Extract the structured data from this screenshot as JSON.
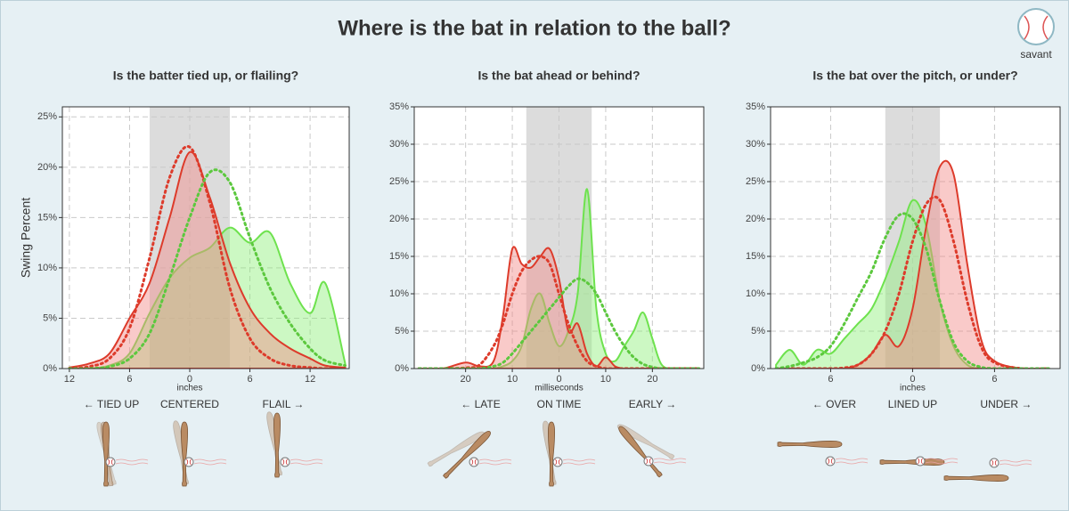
{
  "title": "Where is the bat in relation to the ball?",
  "logo": "savant",
  "chart_data": [
    {
      "type": "density",
      "subtitle": "Is the batter tied up, or flailing?",
      "ylabel": "Swing Percent",
      "xlabel": "inches",
      "zones": [
        "← TIED UP",
        "CENTERED",
        "FLAIL →"
      ],
      "xlim": [
        -12.7,
        15.9
      ],
      "ylim": [
        0,
        26
      ],
      "grid": true,
      "xticks": [
        {
          "value": -12,
          "label": "12"
        },
        {
          "value": -6,
          "label": "6"
        },
        0,
        6,
        12
      ],
      "yticks": [
        {
          "value": 0,
          "label": "0%"
        },
        {
          "value": 5,
          "label": "5%"
        },
        {
          "value": 10,
          "label": "10%"
        },
        {
          "value": 15,
          "label": "15%"
        },
        {
          "value": 20,
          "label": "20%"
        },
        {
          "value": 25,
          "label": "25%"
        }
      ],
      "shade": [
        -4,
        4
      ],
      "x": [
        -12,
        -10,
        -8,
        -6,
        -4,
        -2,
        0,
        2,
        4,
        6,
        8,
        10,
        12,
        13.5,
        15.5
      ],
      "series": [
        {
          "color": "#6ee24e",
          "style": "solid",
          "fill": "#8ff07a",
          "values": [
            0,
            0,
            0.3,
            1.5,
            5.5,
            9,
            11,
            12,
            14,
            12.5,
            13.5,
            8.5,
            5.5,
            8.5,
            0.5
          ]
        },
        {
          "color": "#dd3b2b",
          "style": "solid",
          "fill": "#f28a88",
          "values": [
            0.1,
            0.5,
            1.5,
            5,
            8.5,
            15,
            21.5,
            17,
            10.5,
            6,
            3.5,
            2,
            1,
            0.3,
            0.1
          ]
        },
        {
          "color": "#dd3b2b",
          "style": "dotted",
          "values": [
            0,
            0.2,
            1,
            4,
            11,
            19,
            22,
            16.5,
            8,
            3,
            1,
            0.3,
            0.1,
            0,
            0
          ]
        },
        {
          "color": "#5cc83e",
          "style": "dotted",
          "values": [
            0,
            0,
            0.2,
            1,
            3.5,
            9,
            15,
            19.5,
            18.5,
            13,
            8,
            4.5,
            2,
            0.8,
            0.3
          ]
        }
      ]
    },
    {
      "type": "density",
      "subtitle": "Is the bat ahead or behind?",
      "xlabel": "milliseconds",
      "zones": [
        "← LATE",
        "ON TIME",
        "EARLY →"
      ],
      "xlim": [
        -31,
        31
      ],
      "ylim": [
        0,
        35
      ],
      "grid": true,
      "xticks": [
        {
          "value": -20,
          "label": "20"
        },
        {
          "value": -10,
          "label": "10"
        },
        0,
        10,
        20
      ],
      "yticks": [
        {
          "value": 0,
          "label": "0%"
        },
        {
          "value": 5,
          "label": "5%"
        },
        {
          "value": 10,
          "label": "10%"
        },
        {
          "value": 15,
          "label": "15%"
        },
        {
          "value": 20,
          "label": "20%"
        },
        {
          "value": 25,
          "label": "25%"
        },
        {
          "value": 30,
          "label": "30%"
        },
        {
          "value": 35,
          "label": "35%"
        }
      ],
      "shade": [
        -7,
        7
      ],
      "x": [
        -30,
        -25,
        -20,
        -17,
        -14,
        -12,
        -10,
        -8,
        -6,
        -4,
        -2,
        0,
        2,
        4,
        6,
        8,
        10,
        12,
        14,
        16,
        18,
        20,
        22,
        25,
        30
      ],
      "series": [
        {
          "color": "#6ee24e",
          "style": "solid",
          "fill": "#8ff07a",
          "values": [
            0,
            0,
            0,
            0,
            0,
            0.3,
            1,
            3,
            8,
            10,
            6,
            3,
            5,
            10,
            24,
            8,
            2,
            1,
            3,
            5,
            7.5,
            4,
            0.5,
            0,
            0
          ]
        },
        {
          "color": "#dd3b2b",
          "style": "solid",
          "fill": "#f28a88",
          "values": [
            0,
            0,
            0.8,
            0.3,
            1,
            7,
            16,
            14,
            13.5,
            15,
            16,
            12,
            5,
            6,
            2,
            0.3,
            1.5,
            0.3,
            0,
            0,
            0,
            0,
            0,
            0,
            0
          ]
        },
        {
          "color": "#dd3b2b",
          "style": "dotted",
          "values": [
            0,
            0,
            0.1,
            0.5,
            3,
            6,
            10,
            13,
            14.5,
            15,
            14,
            10,
            6,
            3,
            1,
            0.3,
            0,
            0,
            0,
            0,
            0,
            0,
            0,
            0,
            0
          ]
        },
        {
          "color": "#5cc83e",
          "style": "dotted",
          "values": [
            0,
            0,
            0,
            0,
            0.3,
            0.8,
            2,
            3.5,
            5,
            6.5,
            8,
            9.5,
            11,
            12,
            11.5,
            10,
            7.5,
            5,
            3,
            1.5,
            0.6,
            0.2,
            0,
            0,
            0
          ]
        }
      ]
    },
    {
      "type": "density",
      "subtitle": "Is the bat over the pitch, or under?",
      "xlabel": "inches",
      "zones": [
        "← OVER",
        "LINED UP",
        "UNDER →"
      ],
      "xlim": [
        -10.4,
        10.8
      ],
      "ylim": [
        0,
        35
      ],
      "grid": true,
      "xticks": [
        {
          "value": -6,
          "label": "6"
        },
        0,
        6
      ],
      "yticks": [
        {
          "value": 0,
          "label": "0%"
        },
        {
          "value": 5,
          "label": "5%"
        },
        {
          "value": 10,
          "label": "10%"
        },
        {
          "value": 15,
          "label": "15%"
        },
        {
          "value": 20,
          "label": "20%"
        },
        {
          "value": 25,
          "label": "25%"
        },
        {
          "value": 30,
          "label": "30%"
        },
        {
          "value": 35,
          "label": "35%"
        }
      ],
      "shade": [
        -2,
        2
      ],
      "x": [
        -10,
        -9,
        -8,
        -7,
        -6,
        -5,
        -4,
        -3,
        -2,
        -1,
        0,
        1,
        2,
        3,
        4,
        5,
        6,
        8,
        10
      ],
      "series": [
        {
          "color": "#6ee24e",
          "style": "solid",
          "fill": "#8ff07a",
          "values": [
            0.5,
            2.5,
            0.5,
            2.5,
            2,
            4,
            6,
            8,
            12,
            17,
            22.5,
            19,
            9,
            3,
            0.5,
            0,
            0,
            0,
            0
          ]
        },
        {
          "color": "#dd3b2b",
          "style": "solid",
          "fill": "#f28a88",
          "values": [
            0,
            0,
            0,
            0,
            0,
            0,
            0.5,
            2,
            4.5,
            3,
            8,
            19,
            27,
            26,
            14,
            4,
            1,
            0,
            0
          ]
        },
        {
          "color": "#dd3b2b",
          "style": "dotted",
          "values": [
            0,
            0,
            0,
            0,
            0,
            0.1,
            0.5,
            2,
            5,
            10,
            17,
            22,
            22.5,
            17,
            9,
            3,
            0.8,
            0,
            0
          ]
        },
        {
          "color": "#5cc83e",
          "style": "dotted",
          "values": [
            0,
            0.3,
            0.8,
            1.5,
            3,
            6,
            9.5,
            13,
            17.5,
            20.5,
            20,
            16,
            9,
            3.5,
            1,
            0.2,
            0,
            0,
            0
          ]
        }
      ]
    }
  ]
}
